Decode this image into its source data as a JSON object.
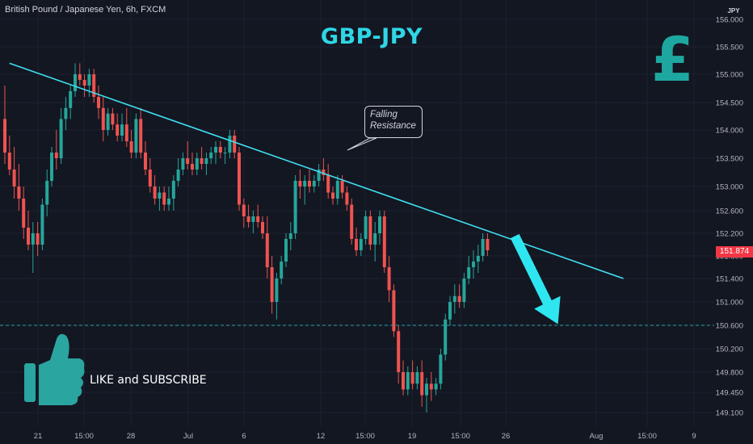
{
  "header": {
    "symbol_info": "British Pound / Japanese Yen, 6h, FXCM"
  },
  "overlay": {
    "title": "GBP-JPY",
    "currency_symbol": "£",
    "callout_lines": [
      "Falling",
      "Resistance"
    ],
    "cta_text": "LIKE and SUBSCRIBE"
  },
  "colors": {
    "background": "#131722",
    "up_candle": "#26a69a",
    "down_candle": "#ef5350",
    "trendline": "#40e0f0",
    "arrow": "#2ee6f0",
    "title": "#2fd6e6",
    "thumbs_up": "#2aa5a0",
    "price_tag": "#f23645"
  },
  "chart_data": {
    "type": "candlestick",
    "axis_currency": "JPY",
    "last_price": "151.874",
    "yticks": [
      "156.000",
      "155.500",
      "155.000",
      "154.500",
      "154.000",
      "153.500",
      "153.000",
      "152.600",
      "152.200",
      "151.800",
      "151.400",
      "151.000",
      "150.600",
      "150.200",
      "149.800",
      "149.450",
      "149.100"
    ],
    "xticks": [
      "21",
      "15:00",
      "28",
      "Jul",
      "6",
      "12",
      "15:00",
      "19",
      "15:00",
      "26",
      "Aug",
      "15:00",
      "9"
    ],
    "horizontal_level": 150.6,
    "trendline": {
      "from": [
        1,
        155.2
      ],
      "to": [
        132,
        151.4
      ]
    },
    "forecast_arrow": {
      "from": [
        104,
        152.15
      ],
      "to": [
        112,
        150.62
      ]
    },
    "candles": [
      [
        154.2,
        154.8,
        153.4,
        153.6
      ],
      [
        153.6,
        153.9,
        153.2,
        153.3
      ],
      [
        153.3,
        153.7,
        152.8,
        153.0
      ],
      [
        153.0,
        153.4,
        152.6,
        152.8
      ],
      [
        152.8,
        153.0,
        152.1,
        152.3
      ],
      [
        152.3,
        152.6,
        151.9,
        152.0
      ],
      [
        152.0,
        152.4,
        151.5,
        152.2
      ],
      [
        152.2,
        152.4,
        151.8,
        152.0
      ],
      [
        152.0,
        152.8,
        151.9,
        152.7
      ],
      [
        152.7,
        153.3,
        152.5,
        153.1
      ],
      [
        153.1,
        153.7,
        153.0,
        153.6
      ],
      [
        153.6,
        154.0,
        153.3,
        153.5
      ],
      [
        153.5,
        154.4,
        153.4,
        154.2
      ],
      [
        154.2,
        154.6,
        154.0,
        154.4
      ],
      [
        154.4,
        154.8,
        154.2,
        154.7
      ],
      [
        154.7,
        155.2,
        154.6,
        155.0
      ],
      [
        155.0,
        155.2,
        154.8,
        154.9
      ],
      [
        154.9,
        155.0,
        154.6,
        154.8
      ],
      [
        154.8,
        155.1,
        154.6,
        155.0
      ],
      [
        155.0,
        155.1,
        154.5,
        154.6
      ],
      [
        154.6,
        154.8,
        154.2,
        154.4
      ],
      [
        154.4,
        154.6,
        153.8,
        154.0
      ],
      [
        154.0,
        154.4,
        153.9,
        154.3
      ],
      [
        154.3,
        154.4,
        154.0,
        154.1
      ],
      [
        154.1,
        154.3,
        153.8,
        153.9
      ],
      [
        153.9,
        154.3,
        153.8,
        154.1
      ],
      [
        154.1,
        154.4,
        153.7,
        153.8
      ],
      [
        153.8,
        154.0,
        153.5,
        153.6
      ],
      [
        153.6,
        154.3,
        153.5,
        154.2
      ],
      [
        154.2,
        154.4,
        153.5,
        153.6
      ],
      [
        153.6,
        153.8,
        153.2,
        153.3
      ],
      [
        153.3,
        153.5,
        152.9,
        153.0
      ],
      [
        153.0,
        153.2,
        152.7,
        152.8
      ],
      [
        152.8,
        153.0,
        152.6,
        152.9
      ],
      [
        152.9,
        153.0,
        152.6,
        152.7
      ],
      [
        152.7,
        153.0,
        152.6,
        152.8
      ],
      [
        152.8,
        153.2,
        152.6,
        153.1
      ],
      [
        153.1,
        153.5,
        153.0,
        153.3
      ],
      [
        153.3,
        153.6,
        153.2,
        153.5
      ],
      [
        153.5,
        153.8,
        153.3,
        153.4
      ],
      [
        153.4,
        153.6,
        153.2,
        153.3
      ],
      [
        153.3,
        153.6,
        153.2,
        153.5
      ],
      [
        153.5,
        153.7,
        153.3,
        153.4
      ],
      [
        153.4,
        153.6,
        153.2,
        153.5
      ],
      [
        153.5,
        153.7,
        153.4,
        153.6
      ],
      [
        153.6,
        153.8,
        153.4,
        153.7
      ],
      [
        153.7,
        153.8,
        153.5,
        153.6
      ],
      [
        153.6,
        153.7,
        153.4,
        153.6
      ],
      [
        153.6,
        154.0,
        153.5,
        153.9
      ],
      [
        153.9,
        154.0,
        153.5,
        153.6
      ],
      [
        153.6,
        153.7,
        152.6,
        152.7
      ],
      [
        152.7,
        152.8,
        152.3,
        152.5
      ],
      [
        152.5,
        152.7,
        152.3,
        152.4
      ],
      [
        152.4,
        152.6,
        152.2,
        152.5
      ],
      [
        152.5,
        152.7,
        152.3,
        152.4
      ],
      [
        152.4,
        152.5,
        152.1,
        152.2
      ],
      [
        152.2,
        152.5,
        151.4,
        151.6
      ],
      [
        151.6,
        151.8,
        150.8,
        151.0
      ],
      [
        151.0,
        151.5,
        150.7,
        151.4
      ],
      [
        151.4,
        151.8,
        151.3,
        151.7
      ],
      [
        151.7,
        152.2,
        151.6,
        152.1
      ],
      [
        152.1,
        152.4,
        151.9,
        152.2
      ],
      [
        152.2,
        153.2,
        152.1,
        153.1
      ],
      [
        153.1,
        153.3,
        152.8,
        153.0
      ],
      [
        153.0,
        153.2,
        152.7,
        153.1
      ],
      [
        153.1,
        153.3,
        152.9,
        153.0
      ],
      [
        153.0,
        153.2,
        152.9,
        153.1
      ],
      [
        153.1,
        153.4,
        153.0,
        153.3
      ],
      [
        153.3,
        153.5,
        153.1,
        153.2
      ],
      [
        153.2,
        153.4,
        152.8,
        152.9
      ],
      [
        152.9,
        153.0,
        152.7,
        152.8
      ],
      [
        152.8,
        153.2,
        152.7,
        153.1
      ],
      [
        153.1,
        153.2,
        152.8,
        152.9
      ],
      [
        152.9,
        153.0,
        152.6,
        152.7
      ],
      [
        152.7,
        152.8,
        152.0,
        152.1
      ],
      [
        152.1,
        152.3,
        151.8,
        151.9
      ],
      [
        151.9,
        152.2,
        151.8,
        152.1
      ],
      [
        152.1,
        152.6,
        152.0,
        152.5
      ],
      [
        152.5,
        152.6,
        151.9,
        152.0
      ],
      [
        152.0,
        152.4,
        151.7,
        152.2
      ],
      [
        152.2,
        152.6,
        152.0,
        152.5
      ],
      [
        152.5,
        152.6,
        151.5,
        151.6
      ],
      [
        151.6,
        151.8,
        151.0,
        151.2
      ],
      [
        151.2,
        151.3,
        150.4,
        150.5
      ],
      [
        150.5,
        150.6,
        149.6,
        149.8
      ],
      [
        149.8,
        150.0,
        149.4,
        149.5
      ],
      [
        149.5,
        149.9,
        149.4,
        149.8
      ],
      [
        149.8,
        150.0,
        149.5,
        149.6
      ],
      [
        149.6,
        149.9,
        149.5,
        149.8
      ],
      [
        149.8,
        150.0,
        149.2,
        149.4
      ],
      [
        149.4,
        149.7,
        149.1,
        149.6
      ],
      [
        149.6,
        149.8,
        149.3,
        149.5
      ],
      [
        149.5,
        149.7,
        149.4,
        149.6
      ],
      [
        149.6,
        150.2,
        149.5,
        150.1
      ],
      [
        150.1,
        150.8,
        150.0,
        150.7
      ],
      [
        150.7,
        151.1,
        150.6,
        151.0
      ],
      [
        151.0,
        151.3,
        150.8,
        151.1
      ],
      [
        151.1,
        151.3,
        150.9,
        151.0
      ],
      [
        151.0,
        151.5,
        150.9,
        151.4
      ],
      [
        151.4,
        151.8,
        151.3,
        151.6
      ],
      [
        151.6,
        151.9,
        151.4,
        151.7
      ],
      [
        151.7,
        152.0,
        151.5,
        151.8
      ],
      [
        151.8,
        152.2,
        151.7,
        152.1
      ],
      [
        152.1,
        152.2,
        151.8,
        151.9
      ]
    ]
  }
}
